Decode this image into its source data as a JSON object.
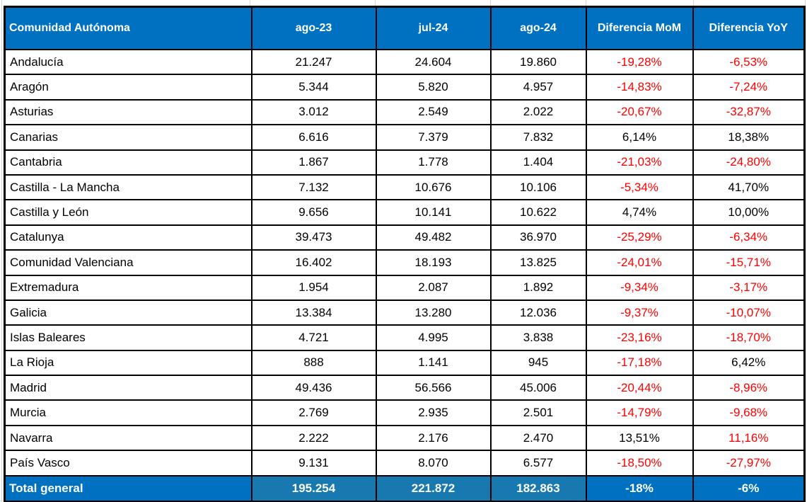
{
  "table": {
    "columns": [
      "Comunidad Autónoma",
      "ago-23",
      "jul-24",
      "ago-24",
      "Diferencia MoM",
      "Diferencia YoY"
    ],
    "rows": [
      {
        "name": "Andalucía",
        "ago23": "21.247",
        "jul24": "24.604",
        "ago24": "19.860",
        "mom": "-19,28%",
        "yoy": "-6,53%",
        "mom_color": "red",
        "yoy_color": "red"
      },
      {
        "name": "Aragón",
        "ago23": "5.344",
        "jul24": "5.820",
        "ago24": "4.957",
        "mom": "-14,83%",
        "yoy": "-7,24%",
        "mom_color": "red",
        "yoy_color": "red"
      },
      {
        "name": "Asturias",
        "ago23": "3.012",
        "jul24": "2.549",
        "ago24": "2.022",
        "mom": "-20,67%",
        "yoy": "-32,87%",
        "mom_color": "red",
        "yoy_color": "red"
      },
      {
        "name": "Canarias",
        "ago23": "6.616",
        "jul24": "7.379",
        "ago24": "7.832",
        "mom": "6,14%",
        "yoy": "18,38%",
        "mom_color": "black",
        "yoy_color": "black"
      },
      {
        "name": "Cantabria",
        "ago23": "1.867",
        "jul24": "1.778",
        "ago24": "1.404",
        "mom": "-21,03%",
        "yoy": "-24,80%",
        "mom_color": "red",
        "yoy_color": "red"
      },
      {
        "name": "Castilla - La Mancha",
        "ago23": "7.132",
        "jul24": "10.676",
        "ago24": "10.106",
        "mom": "-5,34%",
        "yoy": "41,70%",
        "mom_color": "red",
        "yoy_color": "black"
      },
      {
        "name": "Castilla y León",
        "ago23": "9.656",
        "jul24": "10.141",
        "ago24": "10.622",
        "mom": "4,74%",
        "yoy": "10,00%",
        "mom_color": "black",
        "yoy_color": "black"
      },
      {
        "name": "Catalunya",
        "ago23": "39.473",
        "jul24": "49.482",
        "ago24": "36.970",
        "mom": "-25,29%",
        "yoy": "-6,34%",
        "mom_color": "red",
        "yoy_color": "red"
      },
      {
        "name": "Comunidad Valenciana",
        "ago23": "16.402",
        "jul24": "18.193",
        "ago24": "13.825",
        "mom": "-24,01%",
        "yoy": "-15,71%",
        "mom_color": "red",
        "yoy_color": "red"
      },
      {
        "name": "Extremadura",
        "ago23": "1.954",
        "jul24": "2.087",
        "ago24": "1.892",
        "mom": "-9,34%",
        "yoy": "-3,17%",
        "mom_color": "red",
        "yoy_color": "red"
      },
      {
        "name": "Galicia",
        "ago23": "13.384",
        "jul24": "13.280",
        "ago24": "12.036",
        "mom": "-9,37%",
        "yoy": "-10,07%",
        "mom_color": "red",
        "yoy_color": "red"
      },
      {
        "name": "Islas Baleares",
        "ago23": "4.721",
        "jul24": "4.995",
        "ago24": "3.838",
        "mom": "-23,16%",
        "yoy": "-18,70%",
        "mom_color": "red",
        "yoy_color": "red"
      },
      {
        "name": "La Rioja",
        "ago23": "888",
        "jul24": "1.141",
        "ago24": "945",
        "mom": "-17,18%",
        "yoy": "6,42%",
        "mom_color": "red",
        "yoy_color": "black"
      },
      {
        "name": "Madrid",
        "ago23": "49.436",
        "jul24": "56.566",
        "ago24": "45.006",
        "mom": "-20,44%",
        "yoy": "-8,96%",
        "mom_color": "red",
        "yoy_color": "red"
      },
      {
        "name": "Murcia",
        "ago23": "2.769",
        "jul24": "2.935",
        "ago24": "2.501",
        "mom": "-14,79%",
        "yoy": "-9,68%",
        "mom_color": "red",
        "yoy_color": "red"
      },
      {
        "name": "Navarra",
        "ago23": "2.222",
        "jul24": "2.176",
        "ago24": "2.470",
        "mom": "13,51%",
        "yoy": "11,16%",
        "mom_color": "black",
        "yoy_color": "red"
      },
      {
        "name": "País Vasco",
        "ago23": "9.131",
        "jul24": "8.070",
        "ago24": "6.577",
        "mom": "-18,50%",
        "yoy": "-27,97%",
        "mom_color": "red",
        "yoy_color": "red"
      }
    ],
    "total": {
      "name": "Total general",
      "ago23": "195.254",
      "jul24": "221.872",
      "ago24": "182.863",
      "mom": "-18%",
      "yoy": "-6%"
    }
  },
  "colors": {
    "header_bg": "#0070C0",
    "header_text": "#FFFFFF",
    "total_label_bg": "#0070C0",
    "total_values_bg": "#1878B0",
    "negative_text": "#FF0000",
    "positive_text": "#000000",
    "border": "#000000"
  }
}
